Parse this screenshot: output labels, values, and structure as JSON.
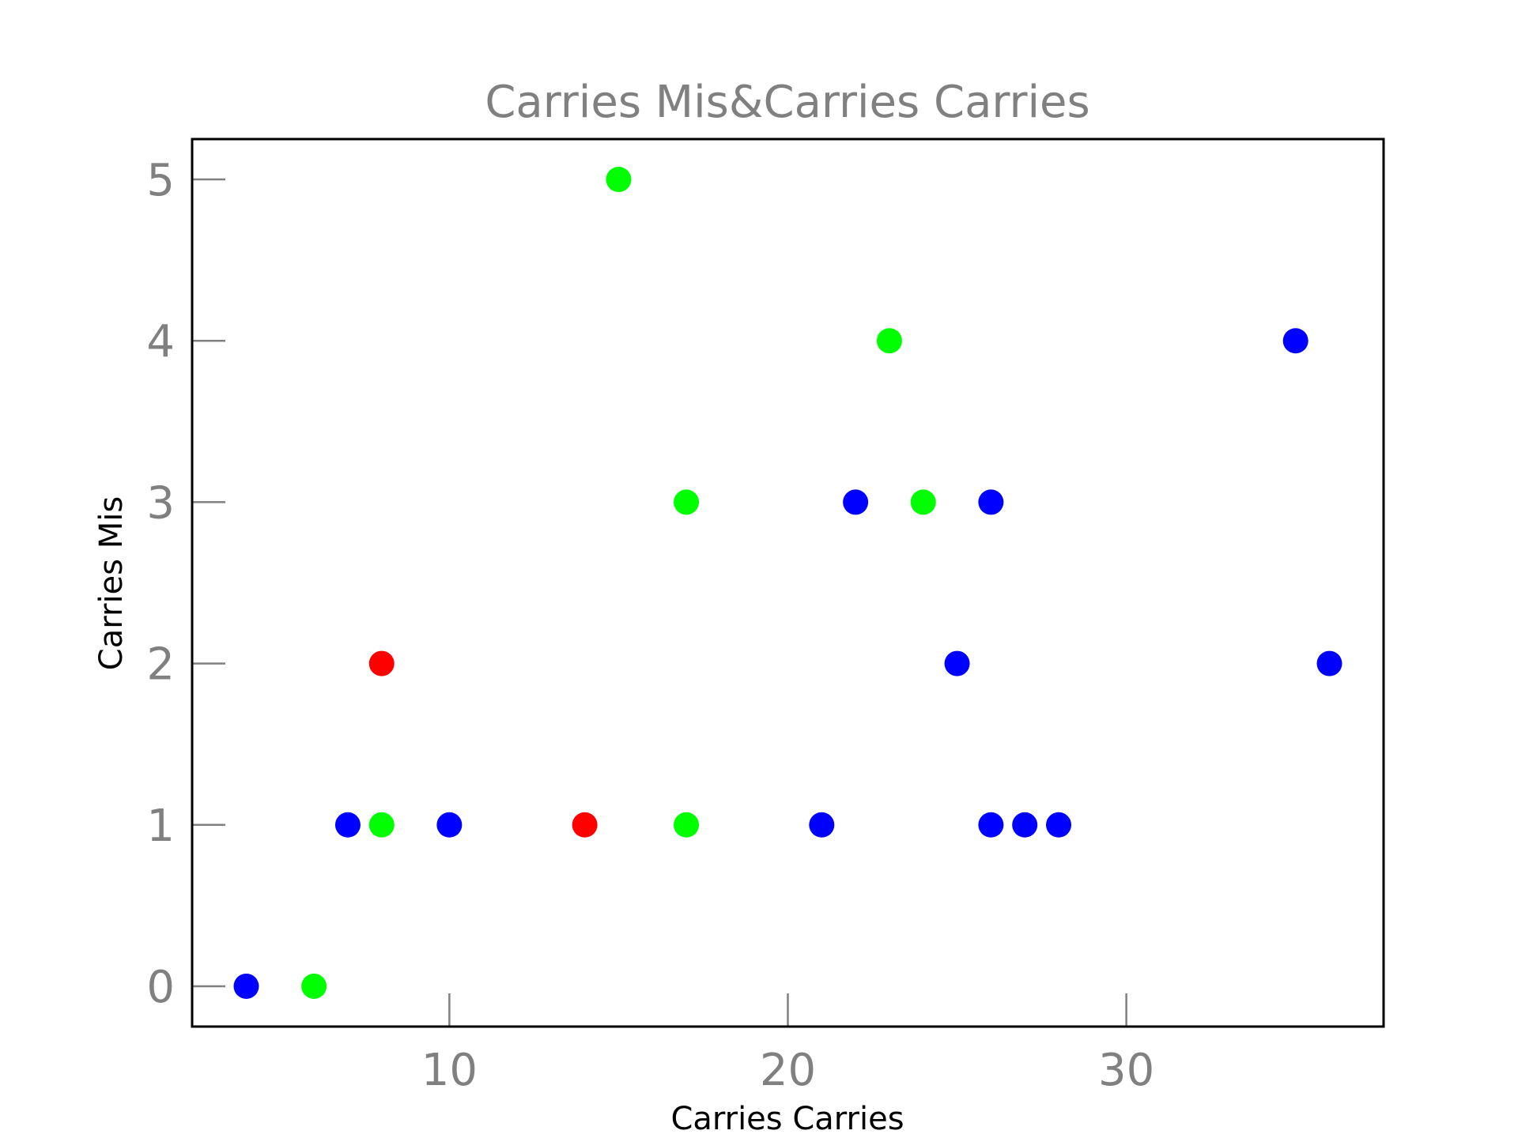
{
  "chart_data": {
    "type": "scatter",
    "title": "Carries Mis&Carries Carries",
    "xlabel": "Carries Carries",
    "ylabel": "Carries Mis",
    "xlim": [
      2.4,
      37.6
    ],
    "ylim": [
      -0.25,
      5.25
    ],
    "xticks": [
      10,
      20,
      30
    ],
    "yticks": [
      0,
      1,
      2,
      3,
      4,
      5
    ],
    "grid": false,
    "legend": "none",
    "points": [
      {
        "x": 4,
        "y": 0,
        "color": "#0000ff"
      },
      {
        "x": 6,
        "y": 0,
        "color": "#00ff00"
      },
      {
        "x": 7,
        "y": 1,
        "color": "#0000ff"
      },
      {
        "x": 8,
        "y": 1,
        "color": "#00ff00"
      },
      {
        "x": 8,
        "y": 2,
        "color": "#ff0000"
      },
      {
        "x": 10,
        "y": 1,
        "color": "#0000ff"
      },
      {
        "x": 14,
        "y": 1,
        "color": "#ff0000"
      },
      {
        "x": 15,
        "y": 5,
        "color": "#00ff00"
      },
      {
        "x": 17,
        "y": 3,
        "color": "#00ff00"
      },
      {
        "x": 17,
        "y": 1,
        "color": "#00ff00"
      },
      {
        "x": 21,
        "y": 1,
        "color": "#0000ff"
      },
      {
        "x": 22,
        "y": 3,
        "color": "#0000ff"
      },
      {
        "x": 23,
        "y": 4,
        "color": "#00ff00"
      },
      {
        "x": 24,
        "y": 3,
        "color": "#00ff00"
      },
      {
        "x": 25,
        "y": 2,
        "color": "#0000ff"
      },
      {
        "x": 26,
        "y": 3,
        "color": "#0000ff"
      },
      {
        "x": 26,
        "y": 1,
        "color": "#0000ff"
      },
      {
        "x": 27,
        "y": 1,
        "color": "#0000ff"
      },
      {
        "x": 28,
        "y": 1,
        "color": "#0000ff"
      },
      {
        "x": 35,
        "y": 4,
        "color": "#0000ff"
      },
      {
        "x": 36,
        "y": 2,
        "color": "#0000ff"
      }
    ]
  }
}
